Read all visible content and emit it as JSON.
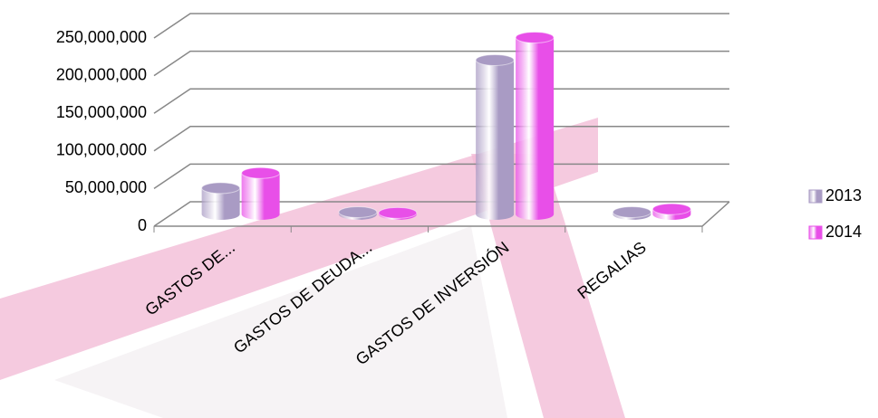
{
  "chart_data": {
    "type": "bar3d",
    "categories": [
      "GASTOS DE...",
      "GASTOS DE DEUDA...",
      "GASTOS DE INVERSIÓN",
      "REGALIAS"
    ],
    "series": [
      {
        "name": "2013",
        "color": "#a99bc4",
        "values": [
          35000000,
          3000000,
          205000000,
          3000000
        ]
      },
      {
        "name": "2014",
        "color": "#e84fe8",
        "values": [
          55000000,
          2000000,
          235000000,
          7000000
        ]
      }
    ],
    "ylim": [
      0,
      250000000
    ],
    "yticks": [
      {
        "value": 0,
        "label": "0"
      },
      {
        "value": 50000000,
        "label": "50,000,000"
      },
      {
        "value": 100000000,
        "label": "100,000,000"
      },
      {
        "value": 150000000,
        "label": "150,000,000"
      },
      {
        "value": 200000000,
        "label": "200,000,000"
      },
      {
        "value": 250000000,
        "label": "250,000,000"
      }
    ],
    "grid": true,
    "legend": "right"
  }
}
